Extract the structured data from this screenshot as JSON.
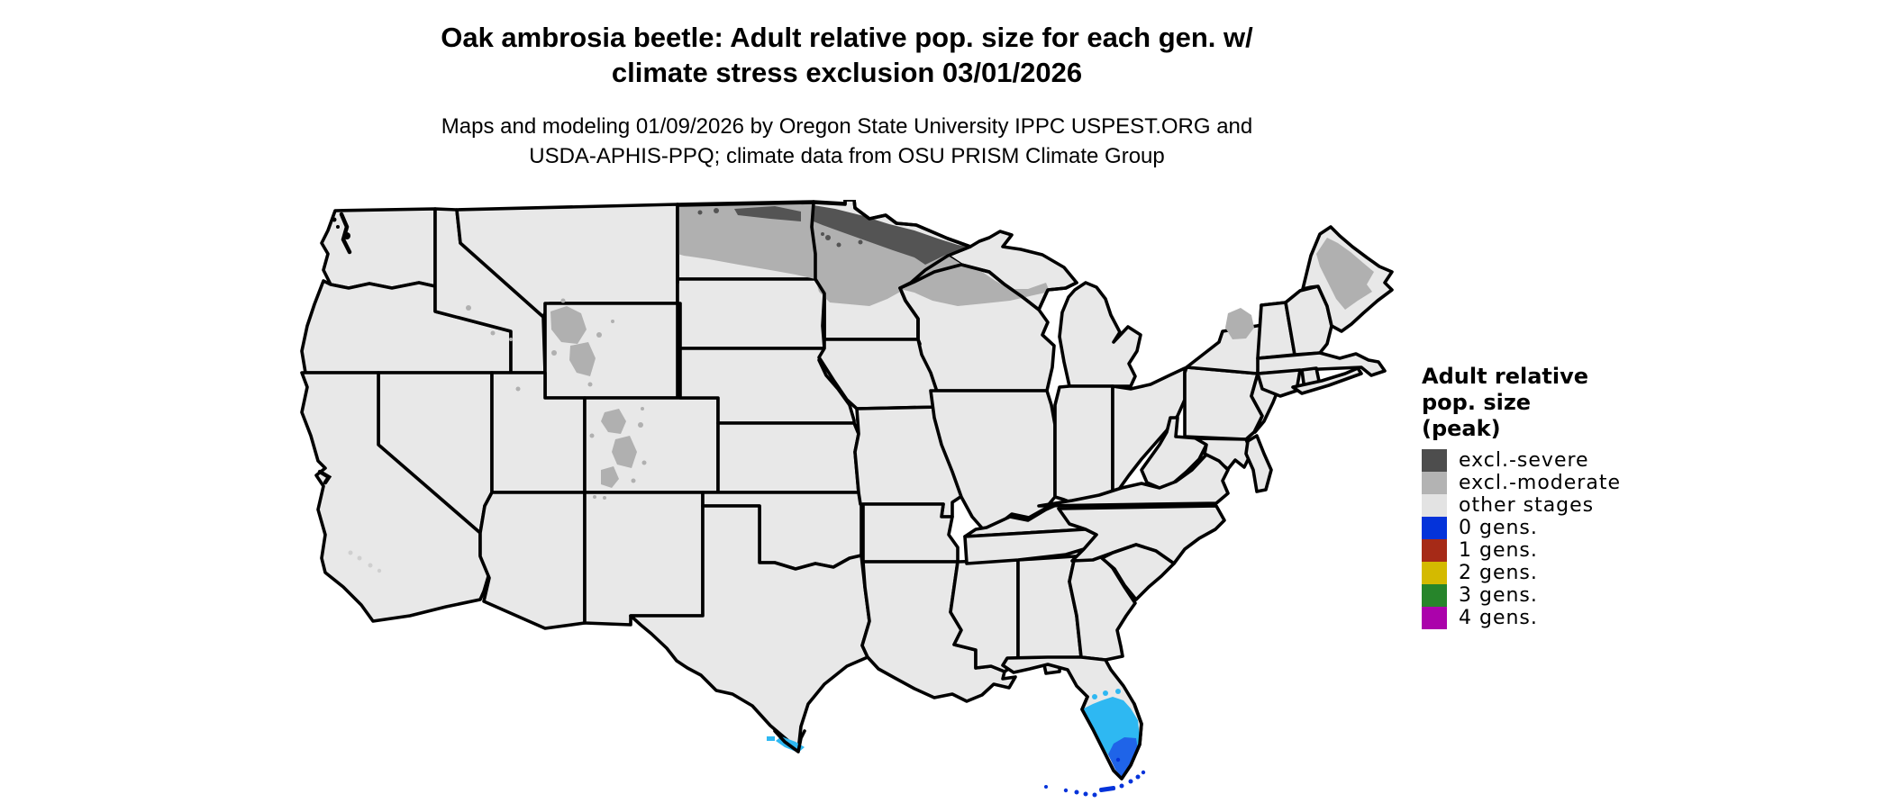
{
  "figure": {
    "title_line1": "Oak ambrosia beetle: Adult relative pop. size for each gen. w/",
    "title_line2": "climate stress exclusion 03/01/2026",
    "subtitle_line1": "Maps and modeling 01/09/2026 by Oregon State University IPPC USPEST.ORG and",
    "subtitle_line2": "USDA-APHIS-PPQ; climate data from OSU PRISM Climate Group"
  },
  "palette": {
    "state_fill": "#e8e8e8",
    "border": "#000000",
    "excl_severe": "#545454",
    "excl_moderate": "#b0b0b0",
    "other_stages": "#e3e3e3",
    "gens0_blue": "#0433da",
    "gens1_red": "#a62a17",
    "gens2_gold": "#d4ba00",
    "gens3_green": "#27852b",
    "gens4_magenta": "#ab02ab",
    "adults_cyan": "#2eb8f2",
    "band_blue": "#1f64e8",
    "island_gray": "#cfcfcf"
  },
  "legend": {
    "title_lines": [
      "Adult relative",
      "pop. size",
      "(peak)"
    ],
    "items": [
      {
        "label": "excl.-severe",
        "color": "#4d4d4d"
      },
      {
        "label": "excl.-moderate",
        "color": "#b3b3b3"
      },
      {
        "label": "other stages",
        "color": "#e3e3e3"
      },
      {
        "label": "0 gens.",
        "color": "#0433da"
      },
      {
        "label": "1 gens.",
        "color": "#a62a17"
      },
      {
        "label": "2 gens.",
        "color": "#d4ba00"
      },
      {
        "label": "3 gens.",
        "color": "#27852b"
      },
      {
        "label": "4 gens.",
        "color": "#ab02ab"
      }
    ]
  },
  "map": {
    "region": "Conterminous United States with state boundaries",
    "shaded_features": [
      {
        "area": "northern Minnesota and northern North Dakota border strip",
        "class": "excl.-severe"
      },
      {
        "area": "North Dakota, northern Minnesota, northern Wisconsin, western Upper Michigan",
        "class": "excl.-moderate"
      },
      {
        "area": "northern Maine",
        "class": "excl.-moderate"
      },
      {
        "area": "Adirondacks, New York",
        "class": "excl.-moderate"
      },
      {
        "area": "Wyoming and Colorado mountain patches",
        "class": "excl.-moderate"
      },
      {
        "area": "central and southern Florida",
        "class": "cyan stage shading"
      },
      {
        "area": "southern tip of Florida",
        "class": "blue band"
      },
      {
        "area": "Florida Keys",
        "class": "0 gens. blue"
      },
      {
        "area": "southern tip of Texas",
        "class": "cyan stage shading"
      },
      {
        "area": "everywhere else",
        "class": "other stages"
      }
    ]
  }
}
